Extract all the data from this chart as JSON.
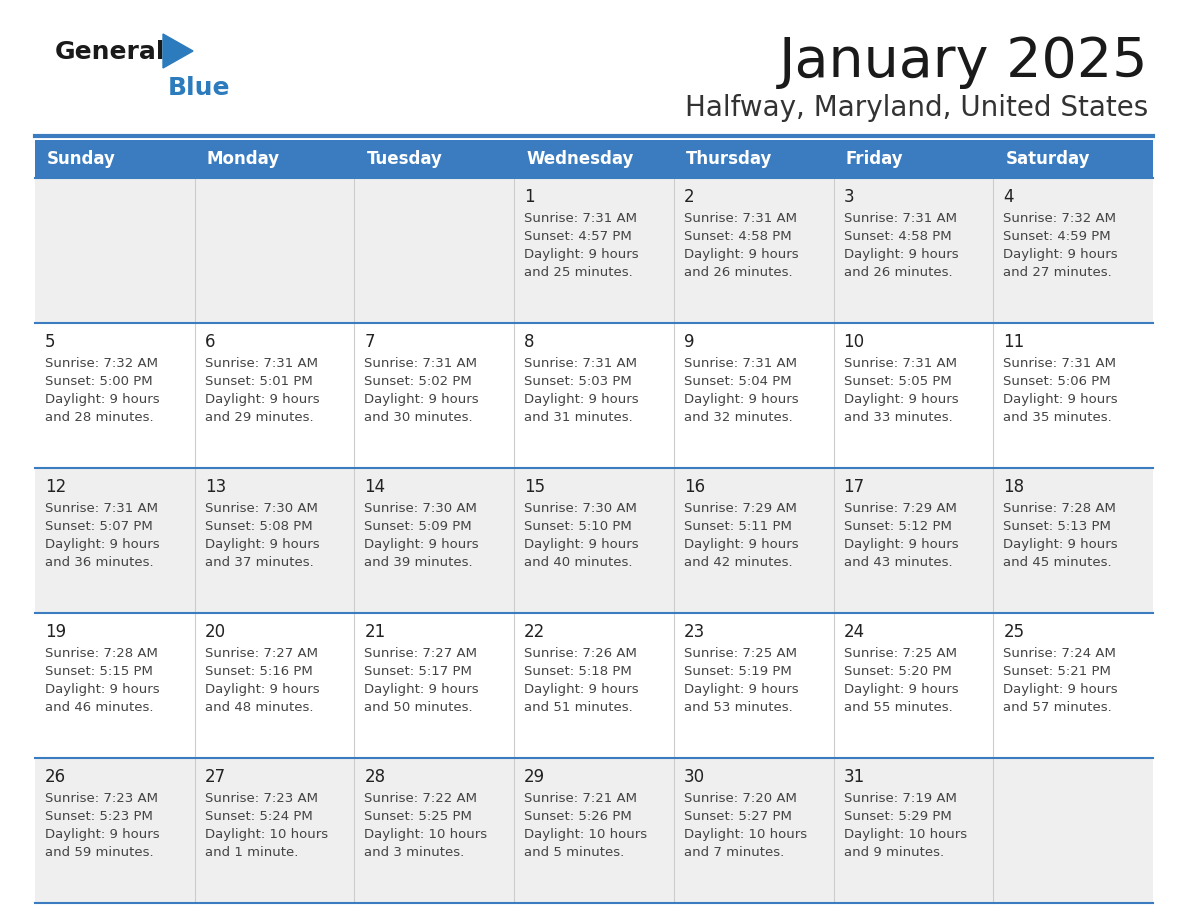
{
  "title": "January 2025",
  "subtitle": "Halfway, Maryland, United States",
  "header_bg_color": "#3A7CBF",
  "header_text_color": "#FFFFFF",
  "title_color": "#1a1a1a",
  "subtitle_color": "#333333",
  "day_names": [
    "Sunday",
    "Monday",
    "Tuesday",
    "Wednesday",
    "Thursday",
    "Friday",
    "Saturday"
  ],
  "row_bg_light": "#EFEFEF",
  "row_bg_white": "#FFFFFF",
  "date_color": "#222222",
  "info_color": "#444444",
  "logo_general_color": "#1a1a1a",
  "logo_blue_color": "#2B7BBD",
  "border_color": "#3A7CBF",
  "calendar_data": [
    [
      {
        "day": null,
        "sunrise": null,
        "sunset": null,
        "daylight_line1": null,
        "daylight_line2": null
      },
      {
        "day": null,
        "sunrise": null,
        "sunset": null,
        "daylight_line1": null,
        "daylight_line2": null
      },
      {
        "day": null,
        "sunrise": null,
        "sunset": null,
        "daylight_line1": null,
        "daylight_line2": null
      },
      {
        "day": 1,
        "sunrise": "7:31 AM",
        "sunset": "4:57 PM",
        "daylight_line1": "Daylight: 9 hours",
        "daylight_line2": "and 25 minutes."
      },
      {
        "day": 2,
        "sunrise": "7:31 AM",
        "sunset": "4:58 PM",
        "daylight_line1": "Daylight: 9 hours",
        "daylight_line2": "and 26 minutes."
      },
      {
        "day": 3,
        "sunrise": "7:31 AM",
        "sunset": "4:58 PM",
        "daylight_line1": "Daylight: 9 hours",
        "daylight_line2": "and 26 minutes."
      },
      {
        "day": 4,
        "sunrise": "7:32 AM",
        "sunset": "4:59 PM",
        "daylight_line1": "Daylight: 9 hours",
        "daylight_line2": "and 27 minutes."
      }
    ],
    [
      {
        "day": 5,
        "sunrise": "7:32 AM",
        "sunset": "5:00 PM",
        "daylight_line1": "Daylight: 9 hours",
        "daylight_line2": "and 28 minutes."
      },
      {
        "day": 6,
        "sunrise": "7:31 AM",
        "sunset": "5:01 PM",
        "daylight_line1": "Daylight: 9 hours",
        "daylight_line2": "and 29 minutes."
      },
      {
        "day": 7,
        "sunrise": "7:31 AM",
        "sunset": "5:02 PM",
        "daylight_line1": "Daylight: 9 hours",
        "daylight_line2": "and 30 minutes."
      },
      {
        "day": 8,
        "sunrise": "7:31 AM",
        "sunset": "5:03 PM",
        "daylight_line1": "Daylight: 9 hours",
        "daylight_line2": "and 31 minutes."
      },
      {
        "day": 9,
        "sunrise": "7:31 AM",
        "sunset": "5:04 PM",
        "daylight_line1": "Daylight: 9 hours",
        "daylight_line2": "and 32 minutes."
      },
      {
        "day": 10,
        "sunrise": "7:31 AM",
        "sunset": "5:05 PM",
        "daylight_line1": "Daylight: 9 hours",
        "daylight_line2": "and 33 minutes."
      },
      {
        "day": 11,
        "sunrise": "7:31 AM",
        "sunset": "5:06 PM",
        "daylight_line1": "Daylight: 9 hours",
        "daylight_line2": "and 35 minutes."
      }
    ],
    [
      {
        "day": 12,
        "sunrise": "7:31 AM",
        "sunset": "5:07 PM",
        "daylight_line1": "Daylight: 9 hours",
        "daylight_line2": "and 36 minutes."
      },
      {
        "day": 13,
        "sunrise": "7:30 AM",
        "sunset": "5:08 PM",
        "daylight_line1": "Daylight: 9 hours",
        "daylight_line2": "and 37 minutes."
      },
      {
        "day": 14,
        "sunrise": "7:30 AM",
        "sunset": "5:09 PM",
        "daylight_line1": "Daylight: 9 hours",
        "daylight_line2": "and 39 minutes."
      },
      {
        "day": 15,
        "sunrise": "7:30 AM",
        "sunset": "5:10 PM",
        "daylight_line1": "Daylight: 9 hours",
        "daylight_line2": "and 40 minutes."
      },
      {
        "day": 16,
        "sunrise": "7:29 AM",
        "sunset": "5:11 PM",
        "daylight_line1": "Daylight: 9 hours",
        "daylight_line2": "and 42 minutes."
      },
      {
        "day": 17,
        "sunrise": "7:29 AM",
        "sunset": "5:12 PM",
        "daylight_line1": "Daylight: 9 hours",
        "daylight_line2": "and 43 minutes."
      },
      {
        "day": 18,
        "sunrise": "7:28 AM",
        "sunset": "5:13 PM",
        "daylight_line1": "Daylight: 9 hours",
        "daylight_line2": "and 45 minutes."
      }
    ],
    [
      {
        "day": 19,
        "sunrise": "7:28 AM",
        "sunset": "5:15 PM",
        "daylight_line1": "Daylight: 9 hours",
        "daylight_line2": "and 46 minutes."
      },
      {
        "day": 20,
        "sunrise": "7:27 AM",
        "sunset": "5:16 PM",
        "daylight_line1": "Daylight: 9 hours",
        "daylight_line2": "and 48 minutes."
      },
      {
        "day": 21,
        "sunrise": "7:27 AM",
        "sunset": "5:17 PM",
        "daylight_line1": "Daylight: 9 hours",
        "daylight_line2": "and 50 minutes."
      },
      {
        "day": 22,
        "sunrise": "7:26 AM",
        "sunset": "5:18 PM",
        "daylight_line1": "Daylight: 9 hours",
        "daylight_line2": "and 51 minutes."
      },
      {
        "day": 23,
        "sunrise": "7:25 AM",
        "sunset": "5:19 PM",
        "daylight_line1": "Daylight: 9 hours",
        "daylight_line2": "and 53 minutes."
      },
      {
        "day": 24,
        "sunrise": "7:25 AM",
        "sunset": "5:20 PM",
        "daylight_line1": "Daylight: 9 hours",
        "daylight_line2": "and 55 minutes."
      },
      {
        "day": 25,
        "sunrise": "7:24 AM",
        "sunset": "5:21 PM",
        "daylight_line1": "Daylight: 9 hours",
        "daylight_line2": "and 57 minutes."
      }
    ],
    [
      {
        "day": 26,
        "sunrise": "7:23 AM",
        "sunset": "5:23 PM",
        "daylight_line1": "Daylight: 9 hours",
        "daylight_line2": "and 59 minutes."
      },
      {
        "day": 27,
        "sunrise": "7:23 AM",
        "sunset": "5:24 PM",
        "daylight_line1": "Daylight: 10 hours",
        "daylight_line2": "and 1 minute."
      },
      {
        "day": 28,
        "sunrise": "7:22 AM",
        "sunset": "5:25 PM",
        "daylight_line1": "Daylight: 10 hours",
        "daylight_line2": "and 3 minutes."
      },
      {
        "day": 29,
        "sunrise": "7:21 AM",
        "sunset": "5:26 PM",
        "daylight_line1": "Daylight: 10 hours",
        "daylight_line2": "and 5 minutes."
      },
      {
        "day": 30,
        "sunrise": "7:20 AM",
        "sunset": "5:27 PM",
        "daylight_line1": "Daylight: 10 hours",
        "daylight_line2": "and 7 minutes."
      },
      {
        "day": 31,
        "sunrise": "7:19 AM",
        "sunset": "5:29 PM",
        "daylight_line1": "Daylight: 10 hours",
        "daylight_line2": "and 9 minutes."
      },
      {
        "day": null,
        "sunrise": null,
        "sunset": null,
        "daylight_line1": null,
        "daylight_line2": null
      }
    ]
  ]
}
